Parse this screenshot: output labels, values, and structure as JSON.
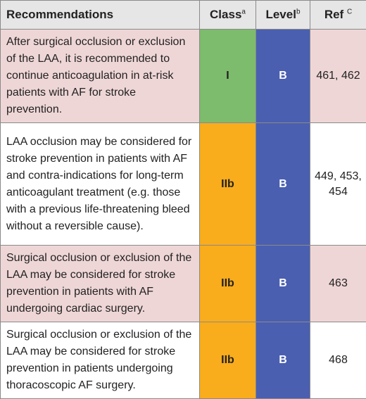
{
  "header": {
    "recommendations": "Recommendations",
    "class": "Class",
    "class_sup": "a",
    "level": "Level",
    "level_sup": "b",
    "ref": "Ref",
    "ref_sup": "C"
  },
  "colors": {
    "class_I": "#7dbb6d",
    "class_IIb": "#f9ac1c",
    "level_B": "#4a5fb0",
    "row_highlight": "#efd6d6",
    "header_bg": "#e6e6e6"
  },
  "rows": [
    {
      "text": "After surgical occlusion or exclusion of the LAA, it is recommended to continue anticoagulation in at-risk patients with AF for stroke prevention.",
      "class": "I",
      "level": "B",
      "ref": "461, 462"
    },
    {
      "text": "LAA occlusion may be considered for stroke prevention in patients with AF and contra-indications for long-term anticoagulant treatment (e.g. those with a previous life-threatening bleed without a reversible cause).",
      "class": "IIb",
      "level": "B",
      "ref": "449, 453, 454"
    },
    {
      "text": "Surgical occlusion or exclusion of the LAA may be considered for stroke prevention in patients with AF undergoing cardiac surgery.",
      "class": "IIb",
      "level": "B",
      "ref": "463"
    },
    {
      "text": "Surgical occlusion or exclusion of the LAA may be considered for stroke prevention in patients undergoing thoracoscopic AF surgery.",
      "class": "IIb",
      "level": "B",
      "ref": "468"
    }
  ]
}
